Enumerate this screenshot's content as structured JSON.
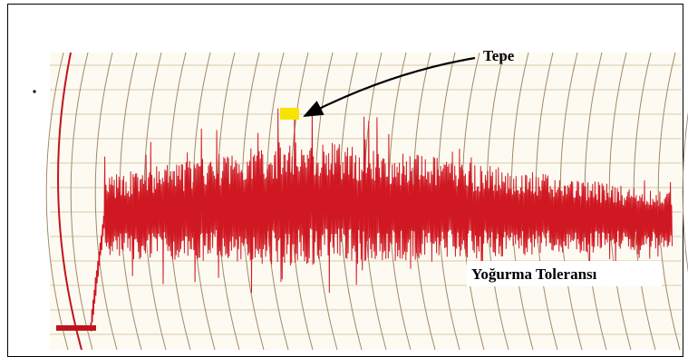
{
  "annotations": {
    "peak": "Tepe",
    "tolerance": "Yoğurma Toleransı"
  }
}
